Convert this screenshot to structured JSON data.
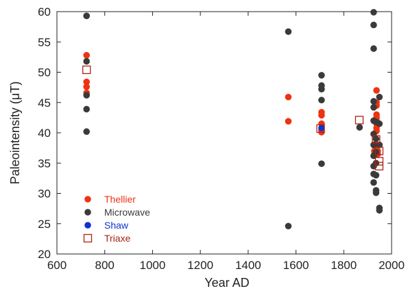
{
  "chart_data": {
    "type": "scatter",
    "title": "",
    "xlabel": "Year AD",
    "ylabel": "Paleointensity (μT)",
    "xlim": [
      600,
      2000
    ],
    "ylim": [
      20,
      60
    ],
    "x_ticks": [
      "600",
      "800",
      "1000",
      "1200",
      "1400",
      "1600",
      "1800",
      "2000"
    ],
    "y_ticks": [
      "20",
      "25",
      "30",
      "35",
      "40",
      "45",
      "50",
      "55",
      "60"
    ],
    "grid": false,
    "legend_position": "bottom-left",
    "series": [
      {
        "name": "Thellier",
        "marker": "filled-circle",
        "color": "#ee3311",
        "points": [
          [
            724,
            52.8
          ],
          [
            724,
            48.4
          ],
          [
            724,
            47.6
          ],
          [
            724,
            46.6
          ],
          [
            1568,
            45.9
          ],
          [
            1568,
            41.9
          ],
          [
            1707,
            43.4
          ],
          [
            1707,
            42.9
          ],
          [
            1707,
            41.5
          ],
          [
            1707,
            40.5
          ],
          [
            1707,
            40.1
          ],
          [
            1928,
            37.0
          ],
          [
            1928,
            36.5
          ],
          [
            1937,
            47.0
          ],
          [
            1937,
            45.0
          ],
          [
            1937,
            44.5
          ],
          [
            1937,
            43.0
          ],
          [
            1937,
            42.5
          ],
          [
            1937,
            42.0
          ],
          [
            1937,
            41.5
          ],
          [
            1937,
            40.8
          ],
          [
            1937,
            40.3
          ],
          [
            1937,
            38.0
          ],
          [
            1942,
            37.0
          ],
          [
            1942,
            36.5
          ]
        ]
      },
      {
        "name": "Microwave",
        "marker": "filled-circle",
        "color": "#3a3a3a",
        "points": [
          [
            724,
            59.3
          ],
          [
            724,
            51.8
          ],
          [
            724,
            46.2
          ],
          [
            724,
            43.9
          ],
          [
            724,
            40.2
          ],
          [
            1568,
            56.7
          ],
          [
            1568,
            24.6
          ],
          [
            1707,
            49.5
          ],
          [
            1707,
            47.8
          ],
          [
            1707,
            47.2
          ],
          [
            1707,
            45.4
          ],
          [
            1707,
            34.9
          ],
          [
            1866,
            40.9
          ],
          [
            1925,
            59.9
          ],
          [
            1925,
            57.8
          ],
          [
            1925,
            53.9
          ],
          [
            1925,
            45.2
          ],
          [
            1925,
            44.2
          ],
          [
            1925,
            42.0
          ],
          [
            1925,
            39.8
          ],
          [
            1925,
            38.0
          ],
          [
            1925,
            36.2
          ],
          [
            1925,
            34.5
          ],
          [
            1925,
            33.2
          ],
          [
            1925,
            31.8
          ],
          [
            1935,
            41.8
          ],
          [
            1935,
            39.0
          ],
          [
            1935,
            36.8
          ],
          [
            1935,
            35.0
          ],
          [
            1935,
            33.0
          ],
          [
            1935,
            30.5
          ],
          [
            1935,
            30.1
          ],
          [
            1949,
            45.9
          ],
          [
            1949,
            41.5
          ],
          [
            1949,
            38.0
          ],
          [
            1949,
            27.6
          ],
          [
            1949,
            27.2
          ]
        ]
      },
      {
        "name": "Shaw",
        "marker": "filled-circle",
        "color": "#1133cc",
        "points": [
          [
            1707,
            40.8
          ]
        ]
      },
      {
        "name": "Triaxe",
        "marker": "open-square",
        "color": "#aa2211",
        "points": [
          [
            724,
            50.4
          ],
          [
            1703,
            40.7
          ],
          [
            1865,
            42.1
          ],
          [
            1935,
            38.9
          ],
          [
            1948,
            37.0
          ],
          [
            1948,
            35.3
          ],
          [
            1948,
            34.5
          ]
        ]
      }
    ]
  }
}
